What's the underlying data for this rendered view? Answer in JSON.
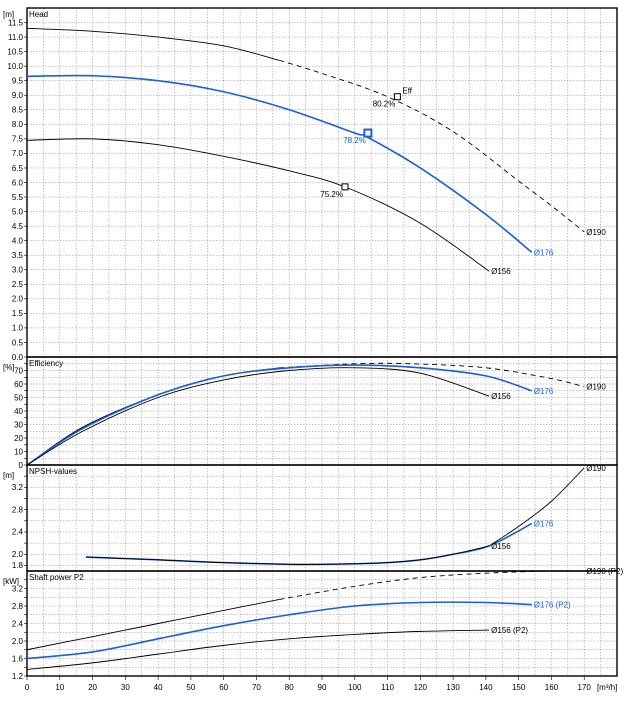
{
  "chart_data": [
    {
      "type": "line",
      "title": "Head",
      "unit": "[m]",
      "ylim": [
        0,
        12
      ],
      "ystep": 0.5,
      "xlim": [
        0,
        180
      ],
      "grid": true,
      "series": [
        {
          "name": "Ø190",
          "color": "#000000",
          "dash_from": 77,
          "x": [
            0,
            20,
            40,
            60,
            77,
            90,
            110,
            130,
            150,
            160,
            170
          ],
          "y": [
            11.3,
            11.2,
            11.0,
            10.7,
            10.2,
            9.75,
            8.95,
            7.75,
            6.05,
            5.2,
            4.3
          ]
        },
        {
          "name": "Ø176",
          "color": "#1a5fd6",
          "x": [
            0,
            20,
            40,
            60,
            80,
            100,
            104,
            120,
            140,
            154
          ],
          "y": [
            9.65,
            9.67,
            9.5,
            9.12,
            8.5,
            7.7,
            7.55,
            6.5,
            4.9,
            3.6
          ]
        },
        {
          "name": "Ø156",
          "color": "#000000",
          "x": [
            0,
            20,
            40,
            60,
            80,
            97,
            120,
            141
          ],
          "y": [
            7.45,
            7.5,
            7.3,
            6.9,
            6.4,
            5.85,
            4.6,
            2.95
          ]
        }
      ],
      "markers": [
        {
          "x": 104,
          "y": 7.7,
          "label": "78.2%",
          "color": "#1a5fd6"
        },
        {
          "x": 97,
          "y": 5.85,
          "label": "75.2%",
          "color": "#000000"
        },
        {
          "x": 113,
          "y": 8.95,
          "label": "80.2%",
          "color": "#000000"
        }
      ],
      "eff_label": "Eff"
    },
    {
      "type": "line",
      "title": "Efficiency",
      "unit": "[%]",
      "ylim": [
        0,
        80
      ],
      "ystep": 10,
      "xlim": [
        0,
        180
      ],
      "grid": true,
      "series": [
        {
          "name": "Ø190",
          "color": "#000000",
          "dash_from": 77,
          "x": [
            0,
            17,
            40,
            60,
            77,
            100,
            117,
            140,
            160,
            170
          ],
          "y": [
            0,
            28,
            52,
            66,
            72,
            75,
            75,
            72,
            64,
            58
          ]
        },
        {
          "name": "Ø176",
          "color": "#1a5fd6",
          "x": [
            0,
            17,
            40,
            60,
            80,
            100,
            120,
            140,
            154
          ],
          "y": [
            0,
            27,
            52,
            66,
            72,
            74,
            72,
            66,
            55
          ]
        },
        {
          "name": "Ø156",
          "color": "#000000",
          "x": [
            0,
            17,
            40,
            60,
            80,
            100,
            120,
            141
          ],
          "y": [
            0,
            25,
            50,
            63,
            70,
            72,
            68,
            51
          ]
        }
      ]
    },
    {
      "type": "line",
      "title": "NPSH-values",
      "unit": "[m]",
      "ylim": [
        1.7,
        3.6
      ],
      "yticks": [
        2.0,
        2.4,
        2.8,
        3.2
      ],
      "ylabels_start": 1.8,
      "ystep": 0.4,
      "xlim": [
        0,
        180
      ],
      "grid": true,
      "series": [
        {
          "name": "Ø190",
          "color": "#000000",
          "x": [
            141,
            150,
            160,
            170
          ],
          "y": [
            2.15,
            2.5,
            2.95,
            3.55
          ]
        },
        {
          "name": "Ø176",
          "color": "#1a5fd6",
          "x": [
            18,
            40,
            60,
            80,
            90,
            100,
            110,
            120,
            130,
            141,
            154
          ],
          "y": [
            1.95,
            1.9,
            1.85,
            1.82,
            1.82,
            1.83,
            1.85,
            1.9,
            2.0,
            2.15,
            2.55
          ]
        },
        {
          "name": "Ø156",
          "color": "#000000",
          "x": [
            18,
            40,
            60,
            80,
            90,
            100,
            110,
            120,
            130,
            141
          ],
          "y": [
            1.95,
            1.9,
            1.85,
            1.82,
            1.82,
            1.83,
            1.85,
            1.9,
            2.0,
            2.15
          ]
        }
      ]
    },
    {
      "type": "line",
      "title": "Shaft power P2",
      "unit": "[kW]",
      "ylim": [
        1.2,
        3.6
      ],
      "ystep": 0.4,
      "xlim": [
        0,
        180
      ],
      "grid": true,
      "series": [
        {
          "name": "Ø190 (P2)",
          "color": "#000000",
          "dash_from": 77,
          "x": [
            0,
            20,
            40,
            60,
            77,
            100,
            120,
            140,
            160,
            170
          ],
          "y": [
            1.8,
            2.1,
            2.4,
            2.7,
            2.95,
            3.25,
            3.45,
            3.55,
            3.6,
            3.6
          ]
        },
        {
          "name": "Ø176 (P2)",
          "color": "#1a5fd6",
          "x": [
            0,
            20,
            40,
            60,
            80,
            100,
            120,
            140,
            154
          ],
          "y": [
            1.6,
            1.75,
            2.05,
            2.35,
            2.6,
            2.8,
            2.88,
            2.88,
            2.83
          ]
        },
        {
          "name": "Ø156 (P2)",
          "color": "#000000",
          "x": [
            0,
            20,
            40,
            60,
            80,
            100,
            120,
            141
          ],
          "y": [
            1.35,
            1.5,
            1.7,
            1.9,
            2.05,
            2.15,
            2.22,
            2.25
          ]
        }
      ]
    }
  ],
  "x_axis": {
    "ticks": [
      0,
      10,
      20,
      30,
      40,
      50,
      60,
      70,
      80,
      90,
      100,
      110,
      120,
      130,
      140,
      150,
      160,
      170
    ],
    "unit": "[m³/h]"
  }
}
